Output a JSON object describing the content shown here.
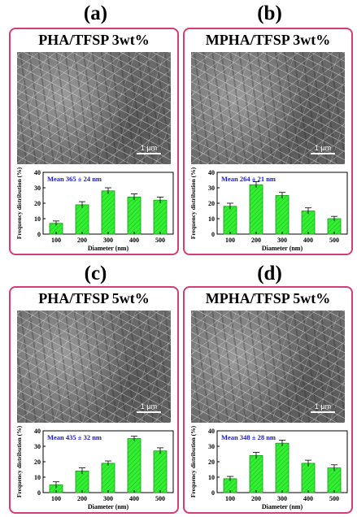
{
  "panels": [
    {
      "label": "(a)",
      "title": "PHA/TFSP 3wt%",
      "scale": "1 μm",
      "mean": "Mean  365 ± 24 nm"
    },
    {
      "label": "(b)",
      "title": "MPHA/TFSP 3wt%",
      "scale": "1 μm",
      "mean": "Mean  264 ± 21 nm"
    },
    {
      "label": "(c)",
      "title": "PHA/TFSP 5wt%",
      "scale": "1 μm",
      "mean": "Mean  435 ± 32 nm"
    },
    {
      "label": "(d)",
      "title": "MPHA/TFSP 5wt%",
      "scale": "1 μm",
      "mean": "Mean  348 ± 28 nm"
    }
  ],
  "chart_data": [
    {
      "type": "bar",
      "categories": [
        "100",
        "200",
        "300",
        "400",
        "500"
      ],
      "values": [
        7,
        19,
        28,
        24,
        22
      ],
      "errors": [
        1.5,
        2,
        2,
        2,
        2
      ],
      "xlabel": "Diameter (nm)",
      "ylabel": "Frequency distribution (%)",
      "ylim": [
        0,
        40
      ],
      "yticks": [
        0,
        10,
        20,
        30,
        40
      ],
      "bar_color": "#33ee33"
    },
    {
      "type": "bar",
      "categories": [
        "100",
        "200",
        "300",
        "400",
        "500"
      ],
      "values": [
        18,
        32,
        25,
        15,
        10
      ],
      "errors": [
        2,
        2,
        2,
        2,
        1.5
      ],
      "xlabel": "Diameter (nm)",
      "ylabel": "Frequency distribution (%)",
      "ylim": [
        0,
        40
      ],
      "yticks": [
        0,
        10,
        20,
        30,
        40
      ],
      "bar_color": "#33ee33"
    },
    {
      "type": "bar",
      "categories": [
        "100",
        "200",
        "300",
        "400",
        "500"
      ],
      "values": [
        5,
        14,
        19,
        35,
        27
      ],
      "errors": [
        2,
        2,
        1.5,
        1.5,
        2
      ],
      "xlabel": "Diameter (nm)",
      "ylabel": "Frequency distribution (%)",
      "ylim": [
        0,
        40
      ],
      "yticks": [
        0,
        10,
        20,
        30,
        40
      ],
      "bar_color": "#33ee33"
    },
    {
      "type": "bar",
      "categories": [
        "100",
        "200",
        "300",
        "400",
        "500"
      ],
      "values": [
        9,
        24,
        32,
        19,
        16
      ],
      "errors": [
        1.5,
        2,
        2,
        2,
        2
      ],
      "xlabel": "Diameter (nm)",
      "ylabel": "Frequency distribution (%)",
      "ylim": [
        0,
        40
      ],
      "yticks": [
        0,
        10,
        20,
        30,
        40
      ],
      "bar_color": "#33ee33"
    }
  ]
}
